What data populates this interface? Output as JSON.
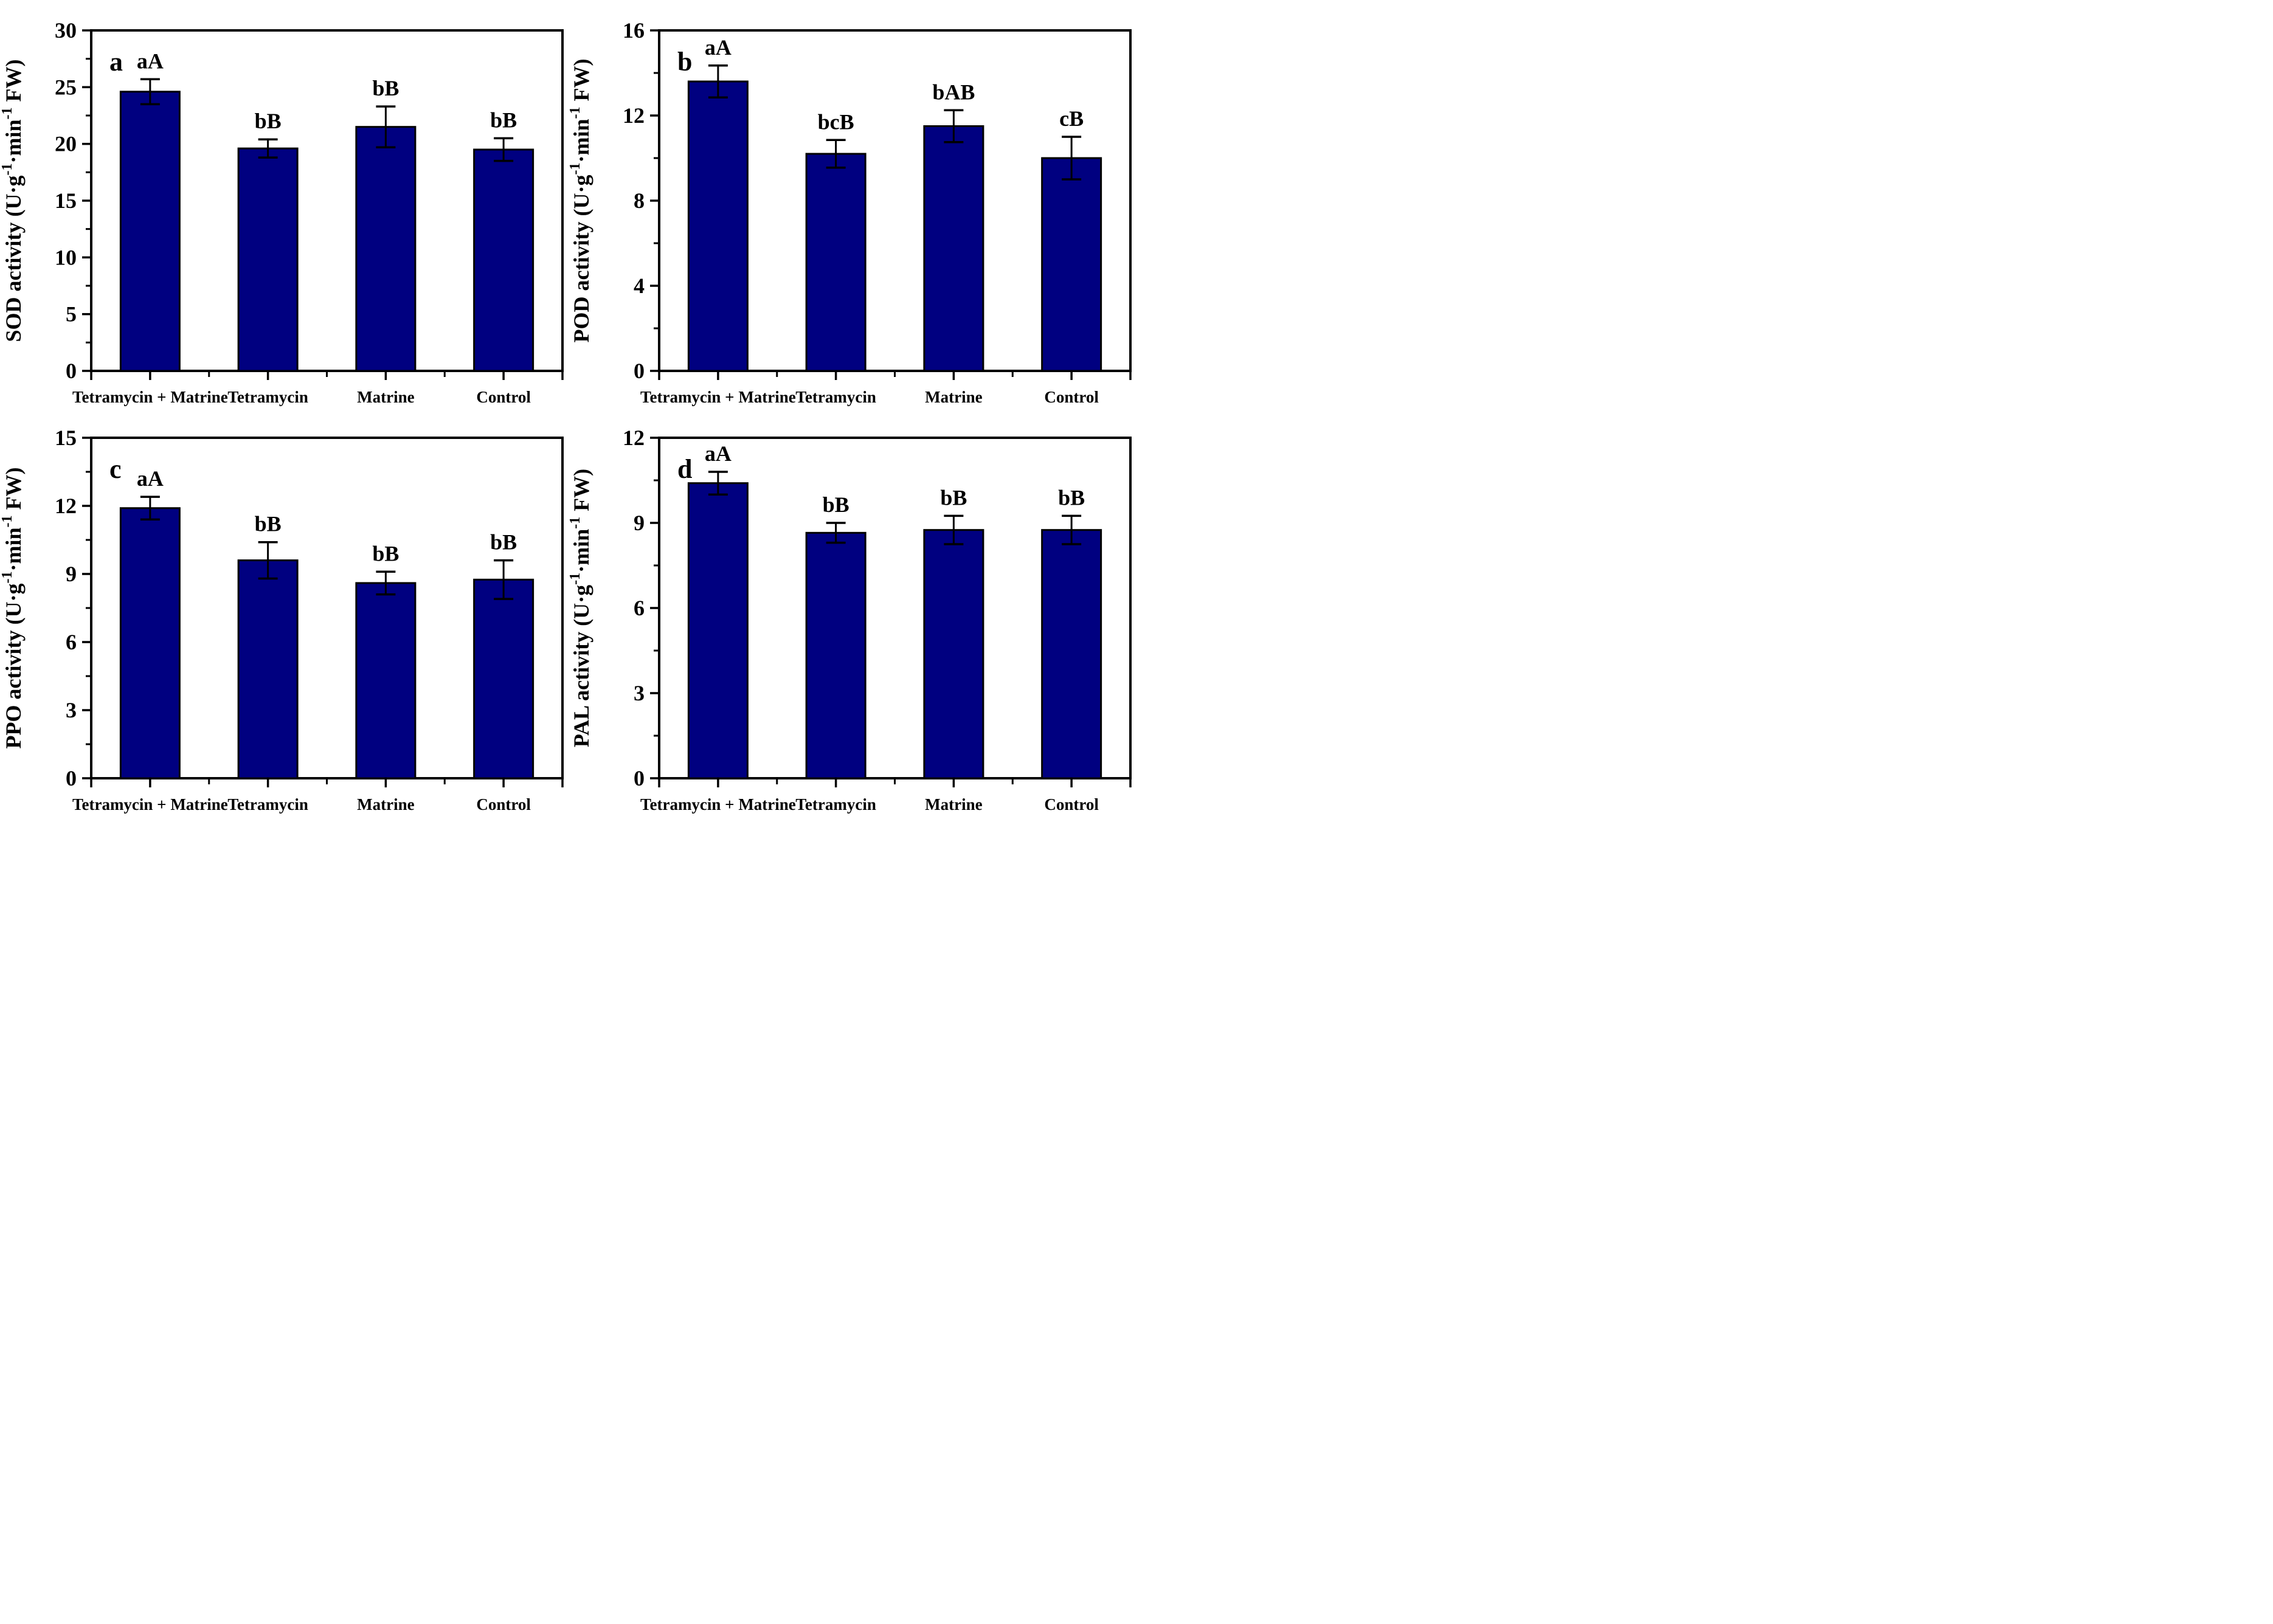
{
  "figure": {
    "background": "#ffffff",
    "axis_color": "#000000",
    "bar_fill": "#000080",
    "bar_stroke": "#000000",
    "categories": [
      "Tetramycin + Matrine",
      "Tetramycin",
      "Matrine",
      "Control"
    ]
  },
  "chart_data": [
    {
      "type": "bar",
      "panel_letter": "a",
      "title": "",
      "xlabel": "",
      "ylabel": "SOD activity (U·g⁻¹·min⁻¹ FW)",
      "ylabel_parts": [
        {
          "text": "SOD activity (U·g",
          "sup": false
        },
        {
          "text": "-1",
          "sup": true
        },
        {
          "text": "·min",
          "sup": false
        },
        {
          "text": "-1",
          "sup": true
        },
        {
          "text": " FW)",
          "sup": false
        }
      ],
      "categories": [
        "Tetramycin + Matrine",
        "Tetramycin",
        "Matrine",
        "Control"
      ],
      "values": [
        24.6,
        19.6,
        21.5,
        19.5
      ],
      "errors": [
        1.1,
        0.8,
        1.8,
        1.0
      ],
      "sig_letters": [
        "aA",
        "bB",
        "bB",
        "bB"
      ],
      "ylim": [
        0,
        30
      ],
      "yticks": [
        0,
        5,
        10,
        15,
        20,
        25,
        30
      ],
      "yminor_step": 2.5,
      "grid": false,
      "legend": "none",
      "bar_color": "#000080"
    },
    {
      "type": "bar",
      "panel_letter": "b",
      "title": "",
      "xlabel": "",
      "ylabel": "POD activity (U·g⁻¹·min⁻¹ FW)",
      "ylabel_parts": [
        {
          "text": "POD activity (U·g",
          "sup": false
        },
        {
          "text": "-1",
          "sup": true
        },
        {
          "text": "·min",
          "sup": false
        },
        {
          "text": "-1",
          "sup": true
        },
        {
          "text": " FW)",
          "sup": false
        }
      ],
      "categories": [
        "Tetramycin + Matrine",
        "Tetramycin",
        "Matrine",
        "Control"
      ],
      "values": [
        13.6,
        10.2,
        11.5,
        10.0
      ],
      "errors": [
        0.75,
        0.65,
        0.75,
        1.0
      ],
      "sig_letters": [
        "aA",
        "bcB",
        "bAB",
        "cB"
      ],
      "ylim": [
        0,
        16
      ],
      "yticks": [
        0,
        4,
        8,
        12,
        16
      ],
      "yminor_step": 2,
      "grid": false,
      "legend": "none",
      "bar_color": "#000080"
    },
    {
      "type": "bar",
      "panel_letter": "c",
      "title": "",
      "xlabel": "",
      "ylabel": "PPO activity (U·g⁻¹·min⁻¹ FW)",
      "ylabel_parts": [
        {
          "text": "PPO activity (U·g",
          "sup": false
        },
        {
          "text": "-1",
          "sup": true
        },
        {
          "text": "·min",
          "sup": false
        },
        {
          "text": "-1",
          "sup": true
        },
        {
          "text": " FW)",
          "sup": false
        }
      ],
      "categories": [
        "Tetramycin + Matrine",
        "Tetramycin",
        "Matrine",
        "Control"
      ],
      "values": [
        11.9,
        9.6,
        8.6,
        8.75
      ],
      "errors": [
        0.5,
        0.8,
        0.5,
        0.85
      ],
      "sig_letters": [
        "aA",
        "bB",
        "bB",
        "bB"
      ],
      "ylim": [
        0,
        15
      ],
      "yticks": [
        0,
        3,
        6,
        9,
        12,
        15
      ],
      "yminor_step": 1.5,
      "grid": false,
      "legend": "none",
      "bar_color": "#000080"
    },
    {
      "type": "bar",
      "panel_letter": "d",
      "title": "",
      "xlabel": "",
      "ylabel": "PAL activity (U·g⁻¹·min⁻¹ FW)",
      "ylabel_parts": [
        {
          "text": "PAL activity (U·g",
          "sup": false
        },
        {
          "text": "-1",
          "sup": true
        },
        {
          "text": "·min",
          "sup": false
        },
        {
          "text": "-1",
          "sup": true
        },
        {
          "text": " FW)",
          "sup": false
        }
      ],
      "categories": [
        "Tetramycin + Matrine",
        "Tetramycin",
        "Matrine",
        "Control"
      ],
      "values": [
        10.4,
        8.65,
        8.75,
        8.75
      ],
      "errors": [
        0.4,
        0.35,
        0.5,
        0.5
      ],
      "sig_letters": [
        "aA",
        "bB",
        "bB",
        "bB"
      ],
      "ylim": [
        0,
        12
      ],
      "yticks": [
        0,
        3,
        6,
        9,
        12
      ],
      "yminor_step": 1.5,
      "grid": false,
      "legend": "none",
      "bar_color": "#000080"
    }
  ]
}
